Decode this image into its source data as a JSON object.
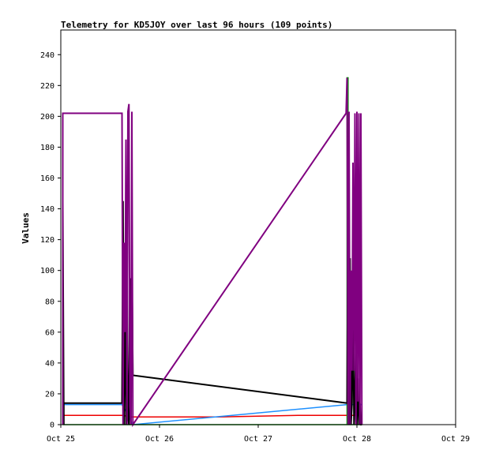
{
  "chart_data": {
    "type": "line",
    "title": "Telemetry for KD5JOY over last 96 hours (109 points)",
    "xlabel": "",
    "ylabel": "Values",
    "ylim": [
      0,
      256
    ],
    "yticks": [
      0,
      20,
      40,
      60,
      80,
      100,
      120,
      140,
      160,
      180,
      200,
      220,
      240
    ],
    "xlim": [
      0,
      4
    ],
    "xticks": [
      {
        "x": 0,
        "label": "Oct 25"
      },
      {
        "x": 1,
        "label": "Oct 26"
      },
      {
        "x": 2,
        "label": "Oct 27"
      },
      {
        "x": 3,
        "label": "Oct 28"
      },
      {
        "x": 4,
        "label": "Oct 29"
      }
    ],
    "legend": "none",
    "grid": false,
    "series": [
      {
        "color": "#ee0000",
        "width": 1.5,
        "x": [
          0.02,
          0.62,
          0.72,
          1.6,
          2.4,
          2.9,
          3.05
        ],
        "y": [
          6,
          6,
          5,
          5,
          6,
          6,
          6
        ]
      },
      {
        "color": "#0000cc",
        "width": 1.5,
        "x": [
          0.02,
          0.62
        ],
        "y": [
          14,
          14
        ]
      },
      {
        "color": "#1e90ff",
        "width": 1.5,
        "x": [
          0.02,
          0.62,
          0.73,
          2.9,
          2.95,
          3.05
        ],
        "y": [
          13,
          13,
          0,
          13,
          13,
          13
        ]
      },
      {
        "color": "#009900",
        "width": 1.5,
        "x": [
          0.02,
          2.9,
          2.9,
          2.91,
          2.91,
          3.05
        ],
        "y": [
          0,
          0,
          225,
          225,
          0,
          0
        ]
      },
      {
        "color": "#000000",
        "width": 2,
        "x": [
          0.02,
          0.02,
          0.03,
          0.03,
          0.62,
          0.63,
          0.64,
          0.65,
          0.66,
          0.67,
          0.68,
          0.69,
          0.7,
          0.71,
          0.72,
          0.73,
          2.9,
          2.91,
          2.92,
          2.93,
          2.94,
          2.95,
          2.96,
          2.97,
          2.98,
          2.99,
          3.0,
          3.01,
          3.02,
          3.03,
          3.04,
          3.05
        ],
        "y": [
          0,
          145,
          0,
          14,
          14,
          145,
          0,
          100,
          0,
          110,
          5,
          0,
          95,
          0,
          110,
          32,
          14,
          145,
          0,
          108,
          0,
          14,
          88,
          0,
          14,
          62,
          0,
          30,
          0,
          14,
          0,
          0
        ]
      },
      {
        "color": "#800080",
        "width": 2,
        "x": [
          0.02,
          0.02,
          0.62,
          0.63,
          0.64,
          0.65,
          0.66,
          0.67,
          0.68,
          0.69,
          0.7,
          0.71,
          0.72,
          0.73,
          2.89,
          2.9,
          2.91,
          2.92,
          2.93,
          2.94,
          2.95,
          2.96,
          2.97,
          2.98,
          2.99,
          3.0,
          3.01,
          3.02,
          3.03,
          3.04,
          3.05
        ],
        "y": [
          0,
          202,
          202,
          0,
          118,
          60,
          185,
          0,
          203,
          208,
          12,
          0,
          203,
          0,
          202,
          225,
          0,
          203,
          0,
          100,
          35,
          170,
          35,
          202,
          0,
          203,
          15,
          202,
          0,
          202,
          0
        ]
      }
    ]
  }
}
